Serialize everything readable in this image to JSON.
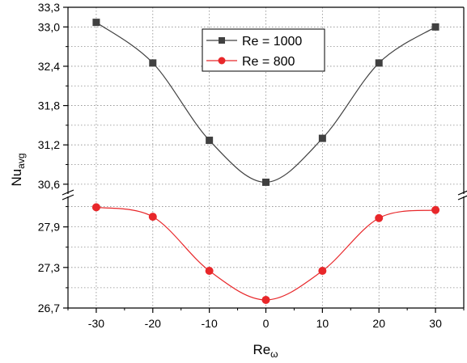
{
  "chart_data": {
    "type": "line",
    "xlabel": "Re",
    "xlabel_sub": "ω",
    "ylabel": "Nu",
    "ylabel_sub": "avg",
    "x": [
      -30,
      -20,
      -10,
      0,
      10,
      20,
      30
    ],
    "x_ticks": [
      -30,
      -20,
      -10,
      0,
      10,
      20,
      30
    ],
    "xlim": [
      -35,
      35
    ],
    "y_axis_break": true,
    "upper_segment": {
      "ylim": [
        30.45,
        33.3
      ],
      "ticks": [
        30.6,
        31.2,
        31.8,
        32.4,
        33.0,
        33.3
      ],
      "tick_labels": [
        "30,6",
        "31,2",
        "31,8",
        "32,4",
        "33,0",
        "33,3"
      ]
    },
    "lower_segment": {
      "ylim": [
        26.7,
        28.35
      ],
      "ticks": [
        26.7,
        27.3,
        27.9
      ],
      "tick_labels": [
        "26,7",
        "27,3",
        "27,9"
      ]
    },
    "series": [
      {
        "name": "Re = 1000",
        "segment": "upper",
        "color": "#404040",
        "marker": "square",
        "values": [
          33.07,
          32.45,
          31.27,
          30.63,
          31.3,
          32.45,
          33.0
        ]
      },
      {
        "name": "Re = 800",
        "segment": "lower",
        "color": "#e8272a",
        "marker": "circle",
        "values": [
          28.19,
          28.05,
          27.25,
          26.82,
          27.25,
          28.03,
          28.15
        ]
      }
    ],
    "grid": true,
    "legend_position": "top-center"
  }
}
